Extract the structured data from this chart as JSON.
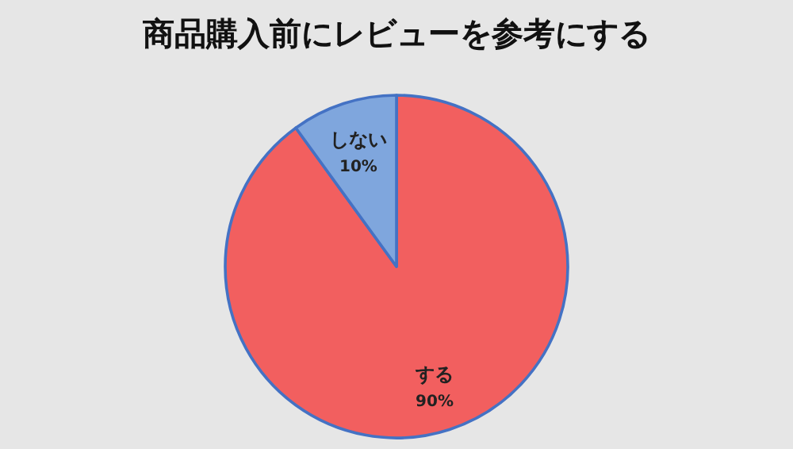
{
  "chart_data": {
    "type": "pie",
    "title": "商品購入前にレビューを参考にする",
    "categories": [
      "する",
      "しない"
    ],
    "values": [
      90,
      10
    ],
    "colors": [
      "#f25f5f",
      "#7fa6dd"
    ],
    "value_labels": [
      "90%",
      "10%"
    ]
  }
}
